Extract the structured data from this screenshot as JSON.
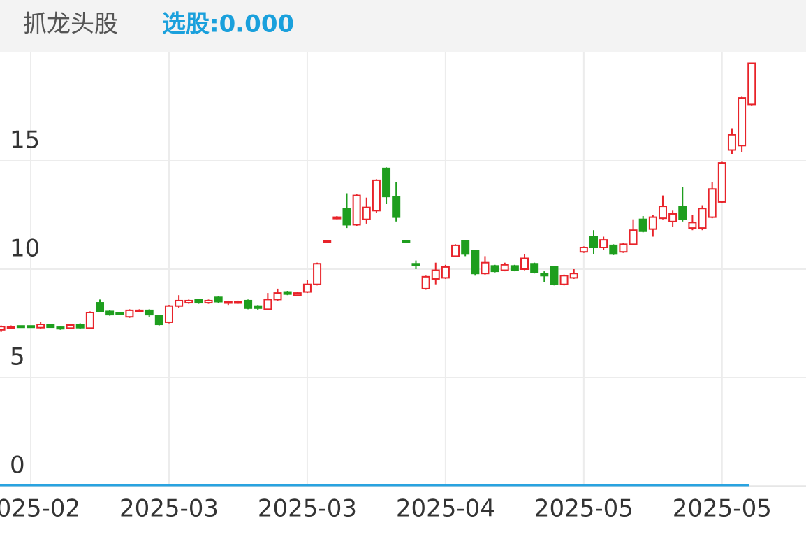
{
  "header": {
    "title": "抓龙头股",
    "indicator": "选股:0.000"
  },
  "chart_data": {
    "type": "candlestick",
    "categories": [
      null,
      null,
      null,
      "2025-02",
      null,
      null,
      null,
      null,
      null,
      null,
      null,
      null,
      null,
      null,
      null,
      null,
      null,
      "2025-03",
      null,
      null,
      null,
      null,
      null,
      null,
      null,
      null,
      null,
      null,
      null,
      null,
      null,
      "2025-03",
      null,
      null,
      null,
      null,
      null,
      null,
      null,
      null,
      null,
      null,
      null,
      null,
      null,
      "2025-04",
      null,
      null,
      null,
      null,
      null,
      null,
      null,
      null,
      null,
      null,
      null,
      null,
      null,
      "2025-05",
      null,
      null,
      null,
      null,
      null,
      null,
      null,
      null,
      null,
      null,
      null,
      null,
      null,
      "2025-05",
      null,
      null,
      null
    ],
    "open": [
      7.2,
      7.3,
      7.38,
      7.38,
      7.3,
      7.42,
      7.32,
      7.28,
      7.45,
      7.28,
      8.45,
      8.05,
      7.98,
      7.8,
      8.05,
      8.1,
      7.85,
      7.55,
      8.3,
      8.45,
      8.6,
      8.45,
      8.7,
      8.45,
      8.45,
      8.55,
      8.3,
      8.15,
      8.6,
      8.95,
      8.8,
      8.95,
      9.3,
      11.25,
      12.35,
      12.8,
      12.05,
      12.3,
      12.7,
      14.65,
      13.35,
      11.3,
      10.25,
      9.1,
      9.55,
      9.6,
      10.6,
      11.3,
      10.85,
      9.8,
      10.15,
      9.95,
      10.15,
      10.0,
      10.25,
      9.8,
      10.1,
      9.3,
      9.6,
      10.8,
      11.5,
      11.0,
      11.1,
      10.8,
      11.15,
      12.3,
      11.85,
      12.35,
      12.2,
      12.9,
      11.9,
      11.9,
      12.4,
      13.1,
      15.5,
      15.7,
      17.6
    ],
    "high": [
      7.4,
      7.4,
      7.4,
      7.4,
      7.55,
      7.45,
      7.35,
      7.45,
      7.5,
      8.05,
      8.6,
      8.1,
      8.0,
      8.15,
      8.15,
      8.15,
      7.9,
      8.35,
      8.8,
      8.6,
      8.6,
      8.6,
      8.75,
      8.55,
      8.55,
      8.6,
      8.35,
      8.9,
      9.1,
      9.0,
      8.95,
      9.5,
      10.3,
      11.35,
      12.45,
      13.5,
      13.45,
      13.3,
      14.15,
      14.7,
      14.0,
      11.3,
      10.4,
      9.7,
      10.3,
      10.2,
      11.15,
      11.35,
      10.9,
      10.6,
      10.2,
      10.3,
      10.2,
      10.7,
      10.3,
      9.9,
      10.15,
      9.75,
      10.0,
      11.05,
      11.8,
      11.5,
      11.15,
      11.2,
      12.3,
      12.45,
      12.5,
      13.4,
      12.7,
      13.8,
      12.5,
      12.95,
      14.0,
      14.95,
      16.5,
      17.95,
      19.5
    ],
    "low": [
      7.1,
      7.25,
      7.3,
      7.3,
      7.25,
      7.3,
      7.2,
      7.25,
      7.25,
      7.25,
      8.0,
      7.85,
      7.9,
      7.75,
      8.0,
      7.8,
      7.4,
      7.5,
      8.2,
      8.4,
      8.4,
      8.4,
      8.45,
      8.35,
      8.4,
      8.15,
      8.1,
      8.1,
      8.55,
      8.8,
      8.75,
      8.9,
      9.25,
      11.2,
      12.3,
      11.9,
      12.0,
      12.1,
      12.6,
      13.0,
      12.2,
      11.2,
      10.0,
      9.05,
      9.3,
      9.55,
      10.55,
      10.6,
      9.7,
      9.75,
      9.85,
      9.9,
      9.9,
      9.95,
      9.8,
      9.4,
      9.25,
      9.25,
      9.55,
      10.75,
      10.7,
      10.9,
      10.65,
      10.75,
      11.1,
      11.7,
      11.5,
      12.3,
      11.95,
      12.2,
      11.8,
      11.8,
      12.35,
      13.05,
      15.3,
      15.4,
      17.55
    ],
    "close": [
      7.35,
      7.35,
      7.32,
      7.32,
      7.45,
      7.32,
      7.25,
      7.42,
      7.3,
      8.0,
      8.05,
      7.9,
      7.92,
      8.1,
      8.1,
      7.9,
      7.45,
      8.3,
      8.55,
      8.55,
      8.45,
      8.55,
      8.5,
      8.5,
      8.5,
      8.2,
      8.2,
      8.6,
      8.9,
      8.85,
      8.9,
      9.3,
      10.25,
      11.3,
      12.4,
      12.05,
      13.4,
      12.85,
      14.1,
      13.35,
      12.4,
      11.25,
      10.2,
      9.65,
      9.95,
      10.1,
      11.1,
      10.7,
      9.8,
      10.3,
      9.9,
      10.2,
      9.95,
      10.5,
      9.85,
      9.7,
      9.3,
      9.7,
      9.8,
      11.0,
      11.0,
      11.35,
      10.7,
      11.15,
      11.8,
      11.75,
      12.4,
      12.9,
      12.55,
      12.3,
      12.15,
      12.8,
      13.7,
      14.9,
      16.2,
      17.9,
      19.5
    ],
    "up_color": "#e8232a",
    "down_color": "#1e9e1e",
    "ylim": [
      0,
      20
    ],
    "yticks": [
      0,
      5,
      10,
      15
    ],
    "grid": true
  }
}
